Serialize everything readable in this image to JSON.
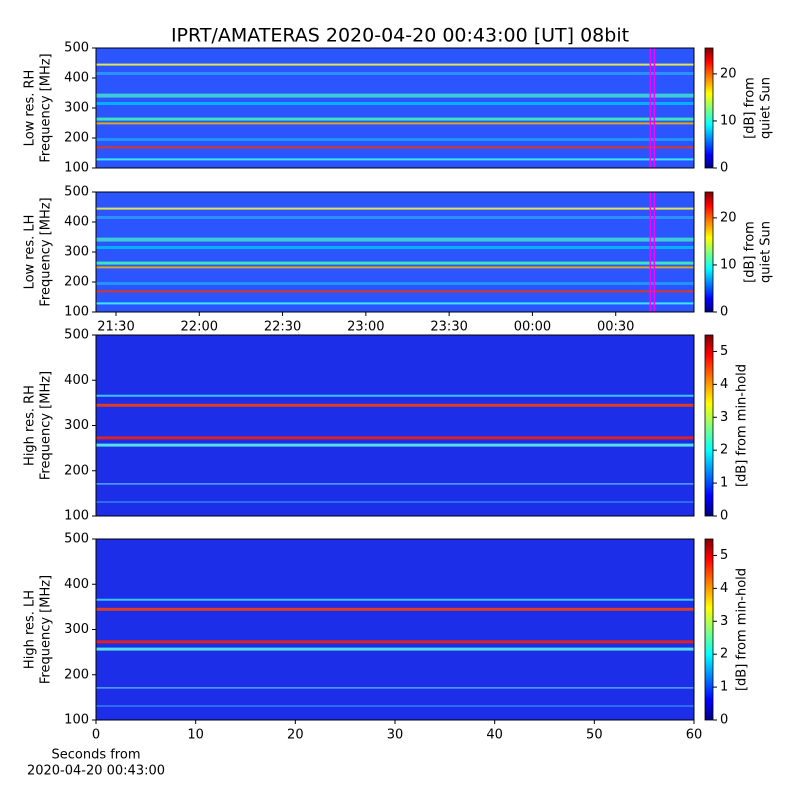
{
  "title": "IPRT/AMATERAS 2020-04-20 00:43:00 [UT]   08bit",
  "chart_data": [
    {
      "type": "heatmap",
      "ylabel": [
        "Low res. RH",
        "Frequency [MHz]"
      ],
      "ylim": [
        100,
        500
      ],
      "yticks": [
        100,
        200,
        300,
        400,
        500
      ],
      "xlim": [
        21.38,
        24.97
      ],
      "marker": 24.72,
      "marker_color": "#ff00ff",
      "colorbar_label": [
        "[dB] from",
        "quiet Sun"
      ],
      "clim": [
        0,
        25.5
      ],
      "cticks": [
        0,
        10,
        20
      ]
    },
    {
      "type": "heatmap",
      "ylabel": [
        "Low res. LH",
        "Frequency [MHz]"
      ],
      "ylim": [
        100,
        500
      ],
      "yticks": [
        100,
        200,
        300,
        400,
        500
      ],
      "xlim": [
        21.38,
        24.97
      ],
      "marker": 24.72,
      "marker_color": "#ff00ff",
      "xticks": [
        {
          "value": 21.5,
          "label": "21:30"
        },
        {
          "value": 22,
          "label": "22:00"
        },
        {
          "value": 22.5,
          "label": "22:30"
        },
        {
          "value": 23,
          "label": "23:00"
        },
        {
          "value": 23.5,
          "label": "23:30"
        },
        {
          "value": 24,
          "label": "00:00"
        },
        {
          "value": 24.5,
          "label": "00:30"
        }
      ],
      "colorbar_label": [
        "[dB] from",
        "quiet Sun"
      ],
      "clim": [
        0,
        25.5
      ],
      "cticks": [
        0,
        10,
        20
      ]
    },
    {
      "type": "heatmap",
      "ylabel": [
        "High res. RH",
        "Frequency [MHz]"
      ],
      "ylim": [
        100,
        500
      ],
      "yticks": [
        100,
        200,
        300,
        400,
        500
      ],
      "xlim": [
        0,
        60
      ],
      "colorbar_label": [
        "[dB] from min-hold"
      ],
      "clim": [
        0,
        5.5
      ],
      "cticks": [
        0,
        1,
        2,
        3,
        4,
        5
      ]
    },
    {
      "type": "heatmap",
      "ylabel": [
        "High res. LH",
        "Frequency [MHz]"
      ],
      "ylim": [
        100,
        500
      ],
      "yticks": [
        100,
        200,
        300,
        400,
        500
      ],
      "xlim": [
        0,
        60
      ],
      "xticks": [
        0,
        10,
        20,
        30,
        40,
        50,
        60
      ],
      "xlabel": [
        "Seconds from",
        "2020-04-20 00:43:00"
      ],
      "colorbar_label": [
        "[dB] from min-hold"
      ],
      "clim": [
        0,
        5.5
      ],
      "cticks": [
        0,
        1,
        2,
        3,
        4,
        5
      ]
    }
  ]
}
